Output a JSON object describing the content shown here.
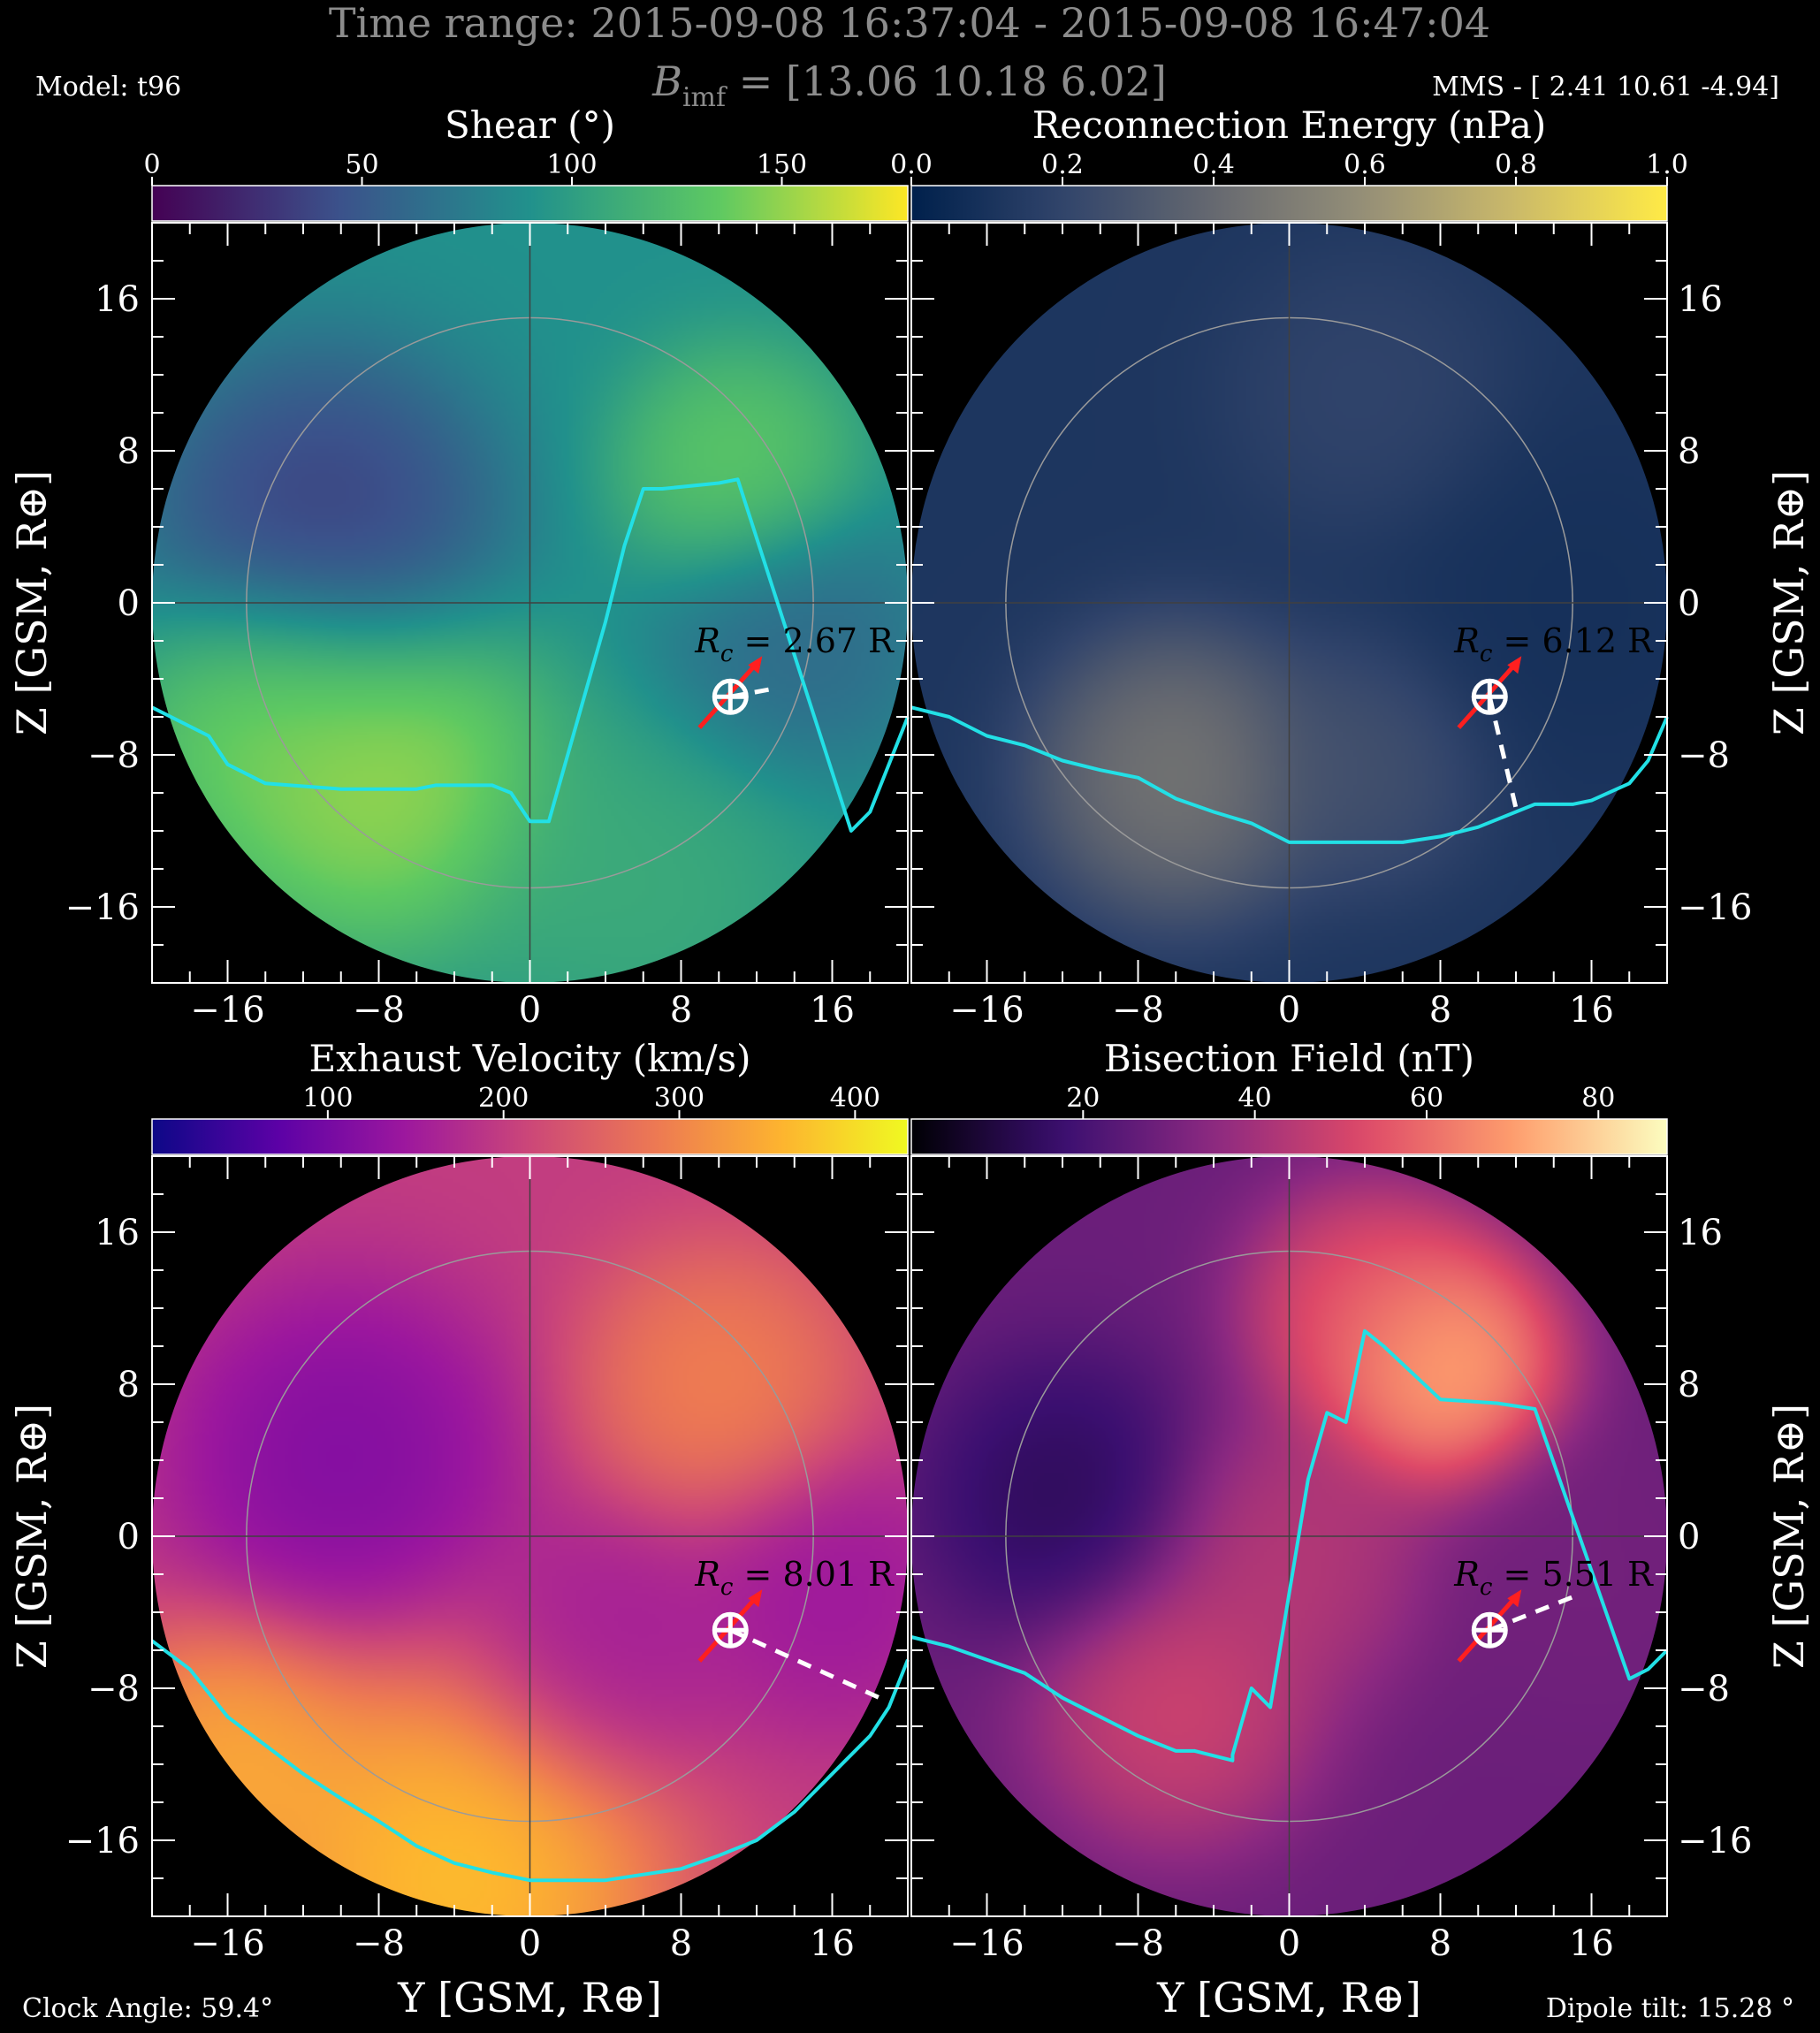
{
  "header": {
    "title_line1": "Time range:  2015-09-08 16:37:04 - 2015-09-08 16:47:04",
    "title_line2": "B_imf = [13.06 10.18 6.02]",
    "title_line2_main": "B",
    "title_line2_sub": "imf",
    "title_line2_rest": " = [13.06 10.18 6.02]",
    "model": "Model: t96",
    "mms": "MMS - [ 2.41 10.61 -4.94]",
    "clock_angle": "Clock Angle: 59.4°",
    "dipole_tilt": "Dipole tilt: 15.28 °"
  },
  "axes": {
    "xlabel": "Y [GSM, R⊕]",
    "ylabel": "Z [GSM, R⊕]",
    "xlim": [
      -20,
      20
    ],
    "ylim": [
      -20,
      20
    ],
    "tick_values": [
      -16,
      -8,
      0,
      8,
      16
    ],
    "tick_labels": [
      "−16",
      "−8",
      "0",
      "8",
      "16"
    ]
  },
  "chart_data": [
    {
      "type": "heatmap",
      "title": "Shear (°)",
      "colormap": [
        "#440154",
        "#3b528b",
        "#21918c",
        "#5ec962",
        "#fde725"
      ],
      "colorbar_range": [
        0,
        180
      ],
      "colorbar_ticks": [
        0,
        50,
        100,
        150
      ],
      "colorbar_tick_labels": [
        "0",
        "50",
        "100",
        "150"
      ],
      "background_value": 90,
      "blobs": [
        {
          "y": -11,
          "z": 4,
          "value": 20,
          "sigma": 5
        },
        {
          "y": 11,
          "z": 7,
          "value": 145,
          "sigma": 3.5
        },
        {
          "y": -8,
          "z": -9,
          "value": 170,
          "sigma": 5
        },
        {
          "y": -14,
          "z": -6,
          "value": 150,
          "sigma": 4
        },
        {
          "y": 14,
          "z": -2,
          "value": 55,
          "sigma": 4
        },
        {
          "y": 6,
          "z": -15,
          "value": 115,
          "sigma": 5
        }
      ],
      "reconnection_line": [
        [
          -20,
          -5.5
        ],
        [
          -17,
          -7
        ],
        [
          -16,
          -8.5
        ],
        [
          -14,
          -9.5
        ],
        [
          -10,
          -9.8
        ],
        [
          -6,
          -9.8
        ],
        [
          -5,
          -9.6
        ],
        [
          -2,
          -9.6
        ],
        [
          -1,
          -10
        ],
        [
          0,
          -11.5
        ],
        [
          1,
          -11.5
        ],
        [
          4,
          -1
        ],
        [
          5,
          3
        ],
        [
          6,
          6
        ],
        [
          7,
          6
        ],
        [
          10,
          6.3
        ],
        [
          11,
          6.5
        ],
        [
          17,
          -12
        ],
        [
          18,
          -11
        ],
        [
          20,
          -6
        ]
      ],
      "spacecraft": {
        "y": 10.61,
        "z": -4.94
      },
      "rc_label": "R_c = 2.67 R",
      "rc_main": "R",
      "rc_sub": "c",
      "rc_value": " = 2.67 R",
      "rc_dash_end": [
        13,
        -4.5
      ]
    },
    {
      "type": "heatmap",
      "title": "Reconnection Energy (nPa)",
      "colormap": [
        "#00204c",
        "#31446b",
        "#666970",
        "#958f78",
        "#cbba69",
        "#ffea46"
      ],
      "colorbar_range": [
        0,
        1
      ],
      "colorbar_ticks": [
        0.0,
        0.2,
        0.4,
        0.6,
        0.8,
        1.0
      ],
      "colorbar_tick_labels": [
        "0.0",
        "0.2",
        "0.4",
        "0.6",
        "0.8",
        "1.0"
      ],
      "background_value": 0.12,
      "blobs": [
        {
          "y": -6,
          "z": -9,
          "value": 0.55,
          "sigma": 4
        },
        {
          "y": 4,
          "z": -8.5,
          "value": 0.3,
          "sigma": 3.5
        },
        {
          "y": 4,
          "z": 11,
          "value": 0.22,
          "sigma": 4
        },
        {
          "y": 15,
          "z": 0,
          "value": 0.08,
          "sigma": 5
        }
      ],
      "reconnection_line": [
        [
          -20,
          -5.5
        ],
        [
          -18,
          -6
        ],
        [
          -16,
          -7
        ],
        [
          -14,
          -7.5
        ],
        [
          -12,
          -8.3
        ],
        [
          -10,
          -8.8
        ],
        [
          -8,
          -9.2
        ],
        [
          -6,
          -10.3
        ],
        [
          -4,
          -11
        ],
        [
          -2,
          -11.6
        ],
        [
          0,
          -12.6
        ],
        [
          4,
          -12.6
        ],
        [
          6,
          -12.6
        ],
        [
          8,
          -12.3
        ],
        [
          10,
          -11.8
        ],
        [
          12,
          -11
        ],
        [
          13,
          -10.6
        ],
        [
          15,
          -10.6
        ],
        [
          16,
          -10.4
        ],
        [
          18,
          -9.5
        ],
        [
          19,
          -8.3
        ],
        [
          20,
          -6
        ]
      ],
      "spacecraft": {
        "y": 10.61,
        "z": -4.94
      },
      "rc_label": "R_c = 6.12 R",
      "rc_main": "R",
      "rc_sub": "c",
      "rc_value": " = 6.12 R",
      "rc_dash_end": [
        12,
        -10.8
      ]
    },
    {
      "type": "heatmap",
      "title": "Exhaust Velocity (km/s)",
      "colormap": [
        "#0d0887",
        "#5c01a6",
        "#9c179e",
        "#cc4778",
        "#ed7953",
        "#fdb42f",
        "#f0f921"
      ],
      "colorbar_range": [
        0,
        430
      ],
      "colorbar_ticks": [
        100,
        200,
        300,
        400
      ],
      "colorbar_tick_labels": [
        "100",
        "200",
        "300",
        "400"
      ],
      "background_value": 200,
      "blobs": [
        {
          "y": -10,
          "z": 4,
          "value": 90,
          "sigma": 5
        },
        {
          "y": 4,
          "z": -6,
          "value": 140,
          "sigma": 4
        },
        {
          "y": 16,
          "z": -3,
          "value": 130,
          "sigma": 4
        },
        {
          "y": 10,
          "z": 8,
          "value": 320,
          "sigma": 4
        },
        {
          "y": -4,
          "z": -18,
          "value": 420,
          "sigma": 6
        },
        {
          "y": -16,
          "z": -12,
          "value": 380,
          "sigma": 4
        }
      ],
      "reconnection_line": [
        [
          -20,
          -5.5
        ],
        [
          -18,
          -7
        ],
        [
          -16,
          -9.5
        ],
        [
          -14,
          -11
        ],
        [
          -12,
          -12.5
        ],
        [
          -10,
          -13.8
        ],
        [
          -8,
          -15
        ],
        [
          -6,
          -16.3
        ],
        [
          -4,
          -17.2
        ],
        [
          -2,
          -17.7
        ],
        [
          0,
          -18.1
        ],
        [
          4,
          -18.1
        ],
        [
          6,
          -17.8
        ],
        [
          8,
          -17.5
        ],
        [
          10,
          -16.8
        ],
        [
          12,
          -16
        ],
        [
          14,
          -14.5
        ],
        [
          16,
          -12.5
        ],
        [
          18,
          -10.5
        ],
        [
          19,
          -9
        ],
        [
          20,
          -6.5
        ]
      ],
      "spacecraft": {
        "y": 10.61,
        "z": -4.94
      },
      "rc_label": "R_c = 8.01 R",
      "rc_main": "R",
      "rc_sub": "c",
      "rc_value": " = 8.01 R",
      "rc_dash_end": [
        18.5,
        -8.5
      ]
    },
    {
      "type": "heatmap",
      "title": "Bisection Field (nT)",
      "colormap": [
        "#000004",
        "#3b0f70",
        "#8c2981",
        "#de4968",
        "#fe9f6d",
        "#fcfdbf"
      ],
      "colorbar_range": [
        0,
        88
      ],
      "colorbar_ticks": [
        20,
        40,
        60,
        80
      ],
      "colorbar_tick_labels": [
        "20",
        "40",
        "60",
        "80"
      ],
      "background_value": 28,
      "blobs": [
        {
          "y": 8,
          "z": 9,
          "value": 85,
          "sigma": 3.5
        },
        {
          "y": 4,
          "z": 12,
          "value": 60,
          "sigma": 3.5
        },
        {
          "y": -6,
          "z": -9,
          "value": 55,
          "sigma": 4
        },
        {
          "y": -12,
          "z": 2,
          "value": 10,
          "sigma": 4
        },
        {
          "y": 0,
          "z": -1,
          "value": 48,
          "sigma": 4
        },
        {
          "y": 16,
          "z": -2,
          "value": 30,
          "sigma": 4
        }
      ],
      "reconnection_line": [
        [
          -20,
          -5.3
        ],
        [
          -18,
          -5.8
        ],
        [
          -16,
          -6.5
        ],
        [
          -14,
          -7.2
        ],
        [
          -12,
          -8.5
        ],
        [
          -10,
          -9.5
        ],
        [
          -8,
          -10.5
        ],
        [
          -6,
          -11.3
        ],
        [
          -5,
          -11.3
        ],
        [
          -3,
          -11.8
        ],
        [
          -3,
          -11.5
        ],
        [
          -2,
          -8
        ],
        [
          -1,
          -9
        ],
        [
          1,
          3
        ],
        [
          2,
          6.5
        ],
        [
          3,
          6
        ],
        [
          4,
          10.8
        ],
        [
          5,
          10
        ],
        [
          8,
          7.2
        ],
        [
          11,
          7
        ],
        [
          13,
          6.7
        ],
        [
          18,
          -7.5
        ],
        [
          19,
          -7
        ],
        [
          20,
          -6
        ]
      ],
      "spacecraft": {
        "y": 10.61,
        "z": -4.94
      },
      "rc_label": "R_c = 5.51 R",
      "rc_main": "R",
      "rc_sub": "c",
      "rc_value": " = 5.51 R",
      "rc_dash_end": [
        15,
        -3.2
      ]
    }
  ]
}
